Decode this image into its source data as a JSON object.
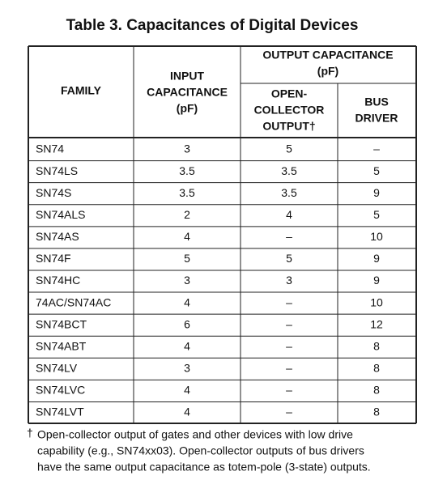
{
  "header": {
    "title": "Table 3.  Capacitances of Digital Devices"
  },
  "table": {
    "columns": {
      "family": [
        "FAMILY"
      ],
      "input": [
        "INPUT",
        "CAPACITANCE",
        "(pF)"
      ],
      "output": [
        "OUTPUT CAPACITANCE",
        "(pF)"
      ],
      "open_collector": [
        "OPEN-",
        "COLLECTOR",
        "OUTPUT†"
      ],
      "bus_driver": [
        "BUS",
        "DRIVER"
      ]
    },
    "rows": [
      [
        "SN74",
        "3",
        "5",
        "–"
      ],
      [
        "SN74LS",
        "3.5",
        "3.5",
        "5"
      ],
      [
        "SN74S",
        "3.5",
        "3.5",
        "9"
      ],
      [
        "SN74ALS",
        "2",
        "4",
        "5"
      ],
      [
        "SN74AS",
        "4",
        "–",
        "10"
      ],
      [
        "SN74F",
        "5",
        "5",
        "9"
      ],
      [
        "SN74HC",
        "3",
        "3",
        "9"
      ],
      [
        "74AC/SN74AC",
        "4",
        "–",
        "10"
      ],
      [
        "SN74BCT",
        "6",
        "–",
        "12"
      ],
      [
        "SN74ABT",
        "4",
        "–",
        "8"
      ],
      [
        "SN74LV",
        "3",
        "–",
        "8"
      ],
      [
        "SN74LVC",
        "4",
        "–",
        "8"
      ],
      [
        "SN74LVT",
        "4",
        "–",
        "8"
      ]
    ]
  },
  "footnote": {
    "marker": "†",
    "lines": [
      "Open-collector output of gates and other devices with low drive",
      "capability (e.g., SN74xx03). Open-collector outputs of bus drivers",
      "have the same output capacitance as totem-pole (3-state) outputs."
    ]
  }
}
